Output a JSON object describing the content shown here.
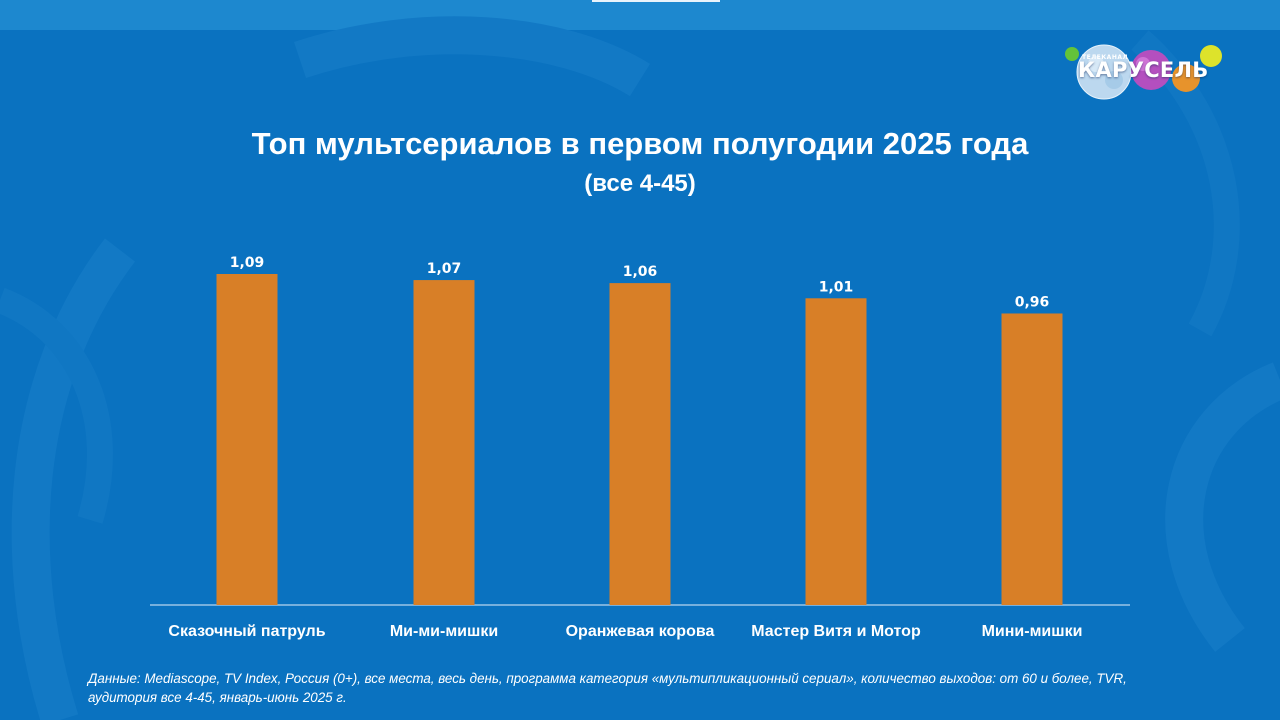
{
  "logo": {
    "name": "КАРУСЕЛЬ",
    "prefix": "ТЕЛЕКАНАЛ"
  },
  "colors": {
    "background": "#0a72c0",
    "bar": "#d87f27",
    "text": "#ffffff",
    "axis": "#b9d6ee"
  },
  "chart_data": {
    "type": "bar",
    "title": "Топ мультсериалов в первом полугодии 2025 года",
    "subtitle": "(все 4-45)",
    "categories": [
      "Сказочный патруль",
      "Ми-ми-мишки",
      "Оранжевая корова",
      "Мастер Витя и Мотор",
      "Мини-мишки"
    ],
    "values": [
      1.09,
      1.07,
      1.06,
      1.01,
      0.96
    ],
    "value_labels": [
      "1,09",
      "1,07",
      "1,06",
      "1,01",
      "0,96"
    ],
    "xlabel": "",
    "ylabel": "",
    "grid": false,
    "legend": "none"
  },
  "footnote": "Данные: Mediascope, TV Index, Россия (0+), все места, весь день, программа категория «мультипликационный сериал», количество выходов: от 60 и более, TVR, аудитория все 4-45, январь-июнь 2025 г."
}
